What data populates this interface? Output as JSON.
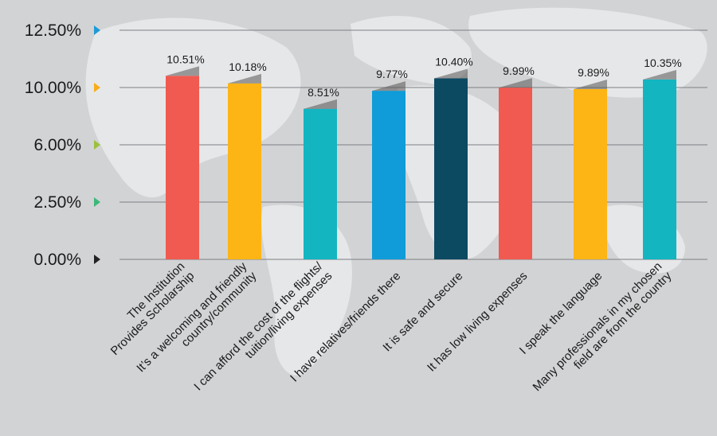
{
  "chart_data": {
    "type": "bar",
    "ytick_labels": [
      "12.50%",
      "10.00%",
      "6.00%",
      "2.50%",
      "0.00%"
    ],
    "ytick_values": [
      12.5,
      10.0,
      6.0,
      2.5,
      0.0
    ],
    "ytick_marker_colors": [
      "#1e9ad6",
      "#f7ad1a",
      "#9bc13c",
      "#3cb878",
      "#222222"
    ],
    "categories": [
      [
        "The Institution",
        "Provides Scholarship"
      ],
      [
        "It’s a welcoming and friendly",
        "country/community"
      ],
      [
        "I can afford the cost of the flights/",
        "tuition/living expenses"
      ],
      [
        "I have relatives/friends there"
      ],
      [
        "It is safe and secure"
      ],
      [
        "It has low living expenses"
      ],
      [
        "I speak the language"
      ],
      [
        "Many professionals in my chosen",
        "field are from the country"
      ]
    ],
    "values": [
      10.51,
      10.18,
      8.51,
      9.77,
      10.4,
      9.99,
      9.89,
      10.35
    ],
    "value_labels": [
      "10.51%",
      "10.18%",
      "8.51%",
      "9.77%",
      "10.40%",
      "9.99%",
      "9.89%",
      "10.35%"
    ],
    "bar_colors": [
      "#f15a50",
      "#fdb515",
      "#13b5c1",
      "#0f9cd8",
      "#0c4a62",
      "#f15a50",
      "#fdb515",
      "#13b5c1"
    ],
    "grid": true,
    "ylim": [
      0,
      12.5
    ]
  }
}
